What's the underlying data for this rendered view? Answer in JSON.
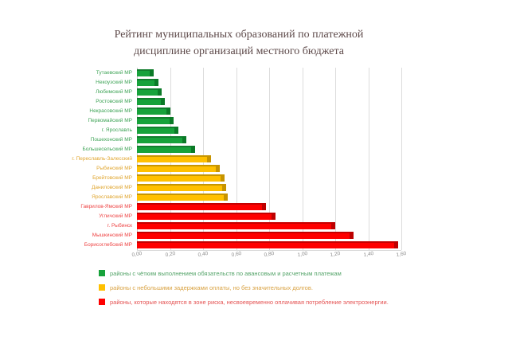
{
  "chart_data": {
    "type": "bar",
    "orientation": "horizontal",
    "title": "Рейтинг муниципальных образований по платежной дисциплине организаций местного бюджета",
    "title_lines": [
      "Рейтинг муниципальных образований по платежной",
      "дисциплине организаций местного бюджета"
    ],
    "title_color": "#5d4949",
    "xlabel": "",
    "ylabel": "",
    "xlim": [
      0,
      1.6
    ],
    "xticks": [
      "0,00",
      "0,20",
      "0,40",
      "0,60",
      "0,80",
      "1,00",
      "1,20",
      "1,40",
      "1,60"
    ],
    "grid": true,
    "legend_position": "bottom-left",
    "categories": [
      "Тутаевский МР",
      "Некоузский МР",
      "Любимский МР",
      "Ростовский МР",
      "Некрасовский МР",
      "Первомайский МР",
      "г. Ярославль",
      "Пошехонский МР",
      "Большесельский МР",
      "г. Переславль-Залесский",
      "Рыбинский МР",
      "Брейтовский МР",
      "Даниловский МР",
      "Ярославский МР",
      "Гаврилов-Ямский МР",
      "Угличский МР",
      "г. Рыбинск",
      "Мышкинский МР",
      "Борисоглебский МР"
    ],
    "values": [
      0.1,
      0.13,
      0.15,
      0.17,
      0.2,
      0.22,
      0.25,
      0.3,
      0.35,
      0.45,
      0.5,
      0.53,
      0.54,
      0.55,
      0.78,
      0.84,
      1.2,
      1.31,
      1.58
    ],
    "category_groups": [
      "green",
      "green",
      "green",
      "green",
      "green",
      "green",
      "green",
      "green",
      "green",
      "yellow",
      "yellow",
      "yellow",
      "yellow",
      "yellow",
      "red",
      "red",
      "red",
      "red",
      "red"
    ],
    "groups": {
      "green": {
        "face": "#17a23b",
        "edge": "#0b7a27",
        "label_color": "#3fa457"
      },
      "yellow": {
        "face": "#ffc000",
        "edge": "#c79400",
        "label_color": "#e0a52e"
      },
      "red": {
        "face": "#fe0000",
        "edge": "#bd0000",
        "label_color": "#ee4444"
      }
    },
    "legend": [
      {
        "group": "green",
        "color": "#17a23b",
        "text_color": "#53a368",
        "label": "районы с чётким выполнением обязательств по авансовым и расчетным платежам"
      },
      {
        "group": "yellow",
        "color": "#ffc000",
        "text_color": "#d9a242",
        "label": "районы с небольшими задержками оплаты, но без значительных долгов."
      },
      {
        "group": "red",
        "color": "#fe0000",
        "text_color": "#e45252",
        "label": "районы, которые находятся в зоне риска, несвоевременно оплачивая потребление электроэнергии."
      }
    ]
  }
}
